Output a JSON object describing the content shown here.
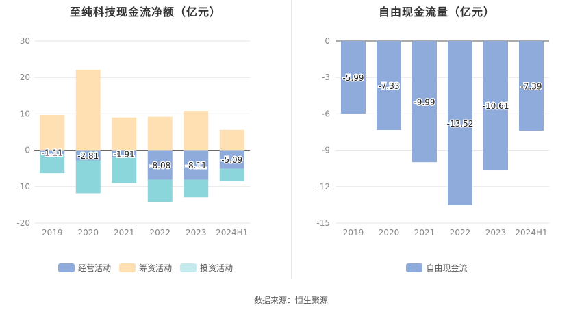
{
  "footer": {
    "source": "数据来源：恒生聚源"
  },
  "chart_data": [
    {
      "type": "bar",
      "stacked": true,
      "title": "至纯科技现金流净额（亿元）",
      "categories": [
        "2019",
        "2020",
        "2021",
        "2022",
        "2023",
        "2024H1"
      ],
      "ylim": [
        -20,
        30
      ],
      "yticks": [
        30,
        20,
        10,
        0,
        -10,
        -20
      ],
      "grid": true,
      "legend_position": "bottom",
      "series": [
        {
          "name": "经营活动",
          "color": "#8eabdb",
          "values": [
            -1.11,
            -2.81,
            -1.91,
            -8.08,
            -8.11,
            -5.09
          ]
        },
        {
          "name": "筹资活动",
          "color": "#ffe0b2",
          "values": [
            9.7,
            22.1,
            9.0,
            9.2,
            10.8,
            5.6
          ]
        },
        {
          "name": "投资活动",
          "color": "#8ad6da",
          "values": [
            -5.2,
            -9.0,
            -7.1,
            -6.2,
            -4.8,
            -3.4
          ]
        }
      ],
      "data_label_series": "经营活动"
    },
    {
      "type": "bar",
      "title": "自由现金流量（亿元）",
      "categories": [
        "2019",
        "2020",
        "2021",
        "2022",
        "2023",
        "2024H1"
      ],
      "ylim": [
        -15,
        0
      ],
      "yticks": [
        0,
        -3,
        -6,
        -9,
        -12,
        -15
      ],
      "grid": true,
      "legend_position": "bottom",
      "series": [
        {
          "name": "自由现金流",
          "color": "#8eabdb",
          "values": [
            -5.99,
            -7.33,
            -9.99,
            -13.52,
            -10.61,
            -7.39
          ]
        }
      ]
    }
  ]
}
